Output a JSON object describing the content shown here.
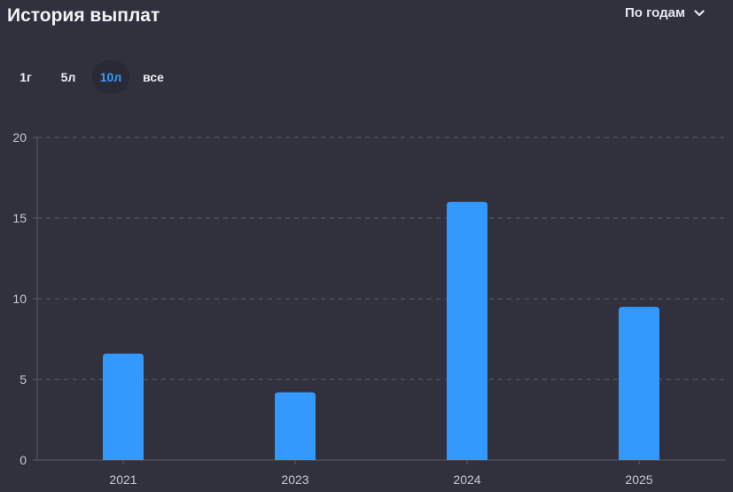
{
  "header": {
    "title": "История выплат",
    "period_label": "По годам"
  },
  "ranges": [
    {
      "label": "1г",
      "active": false
    },
    {
      "label": "5л",
      "active": false
    },
    {
      "label": "10л",
      "active": true
    },
    {
      "label": "все",
      "active": false
    }
  ],
  "colors": {
    "background": "#31313d",
    "bar": "#3399ff",
    "active_range": "#3a9bff",
    "grid": "#5a5a68",
    "tick_text": "#c8c8d2"
  },
  "chart_data": {
    "type": "bar",
    "categories": [
      "2021",
      "2023",
      "2024",
      "2025"
    ],
    "values": [
      6.6,
      4.2,
      16.0,
      9.5
    ],
    "title": "",
    "xlabel": "",
    "ylabel": "",
    "ylim": [
      0,
      20
    ],
    "yticks": [
      0,
      5,
      10,
      15,
      20
    ],
    "grid": true
  }
}
